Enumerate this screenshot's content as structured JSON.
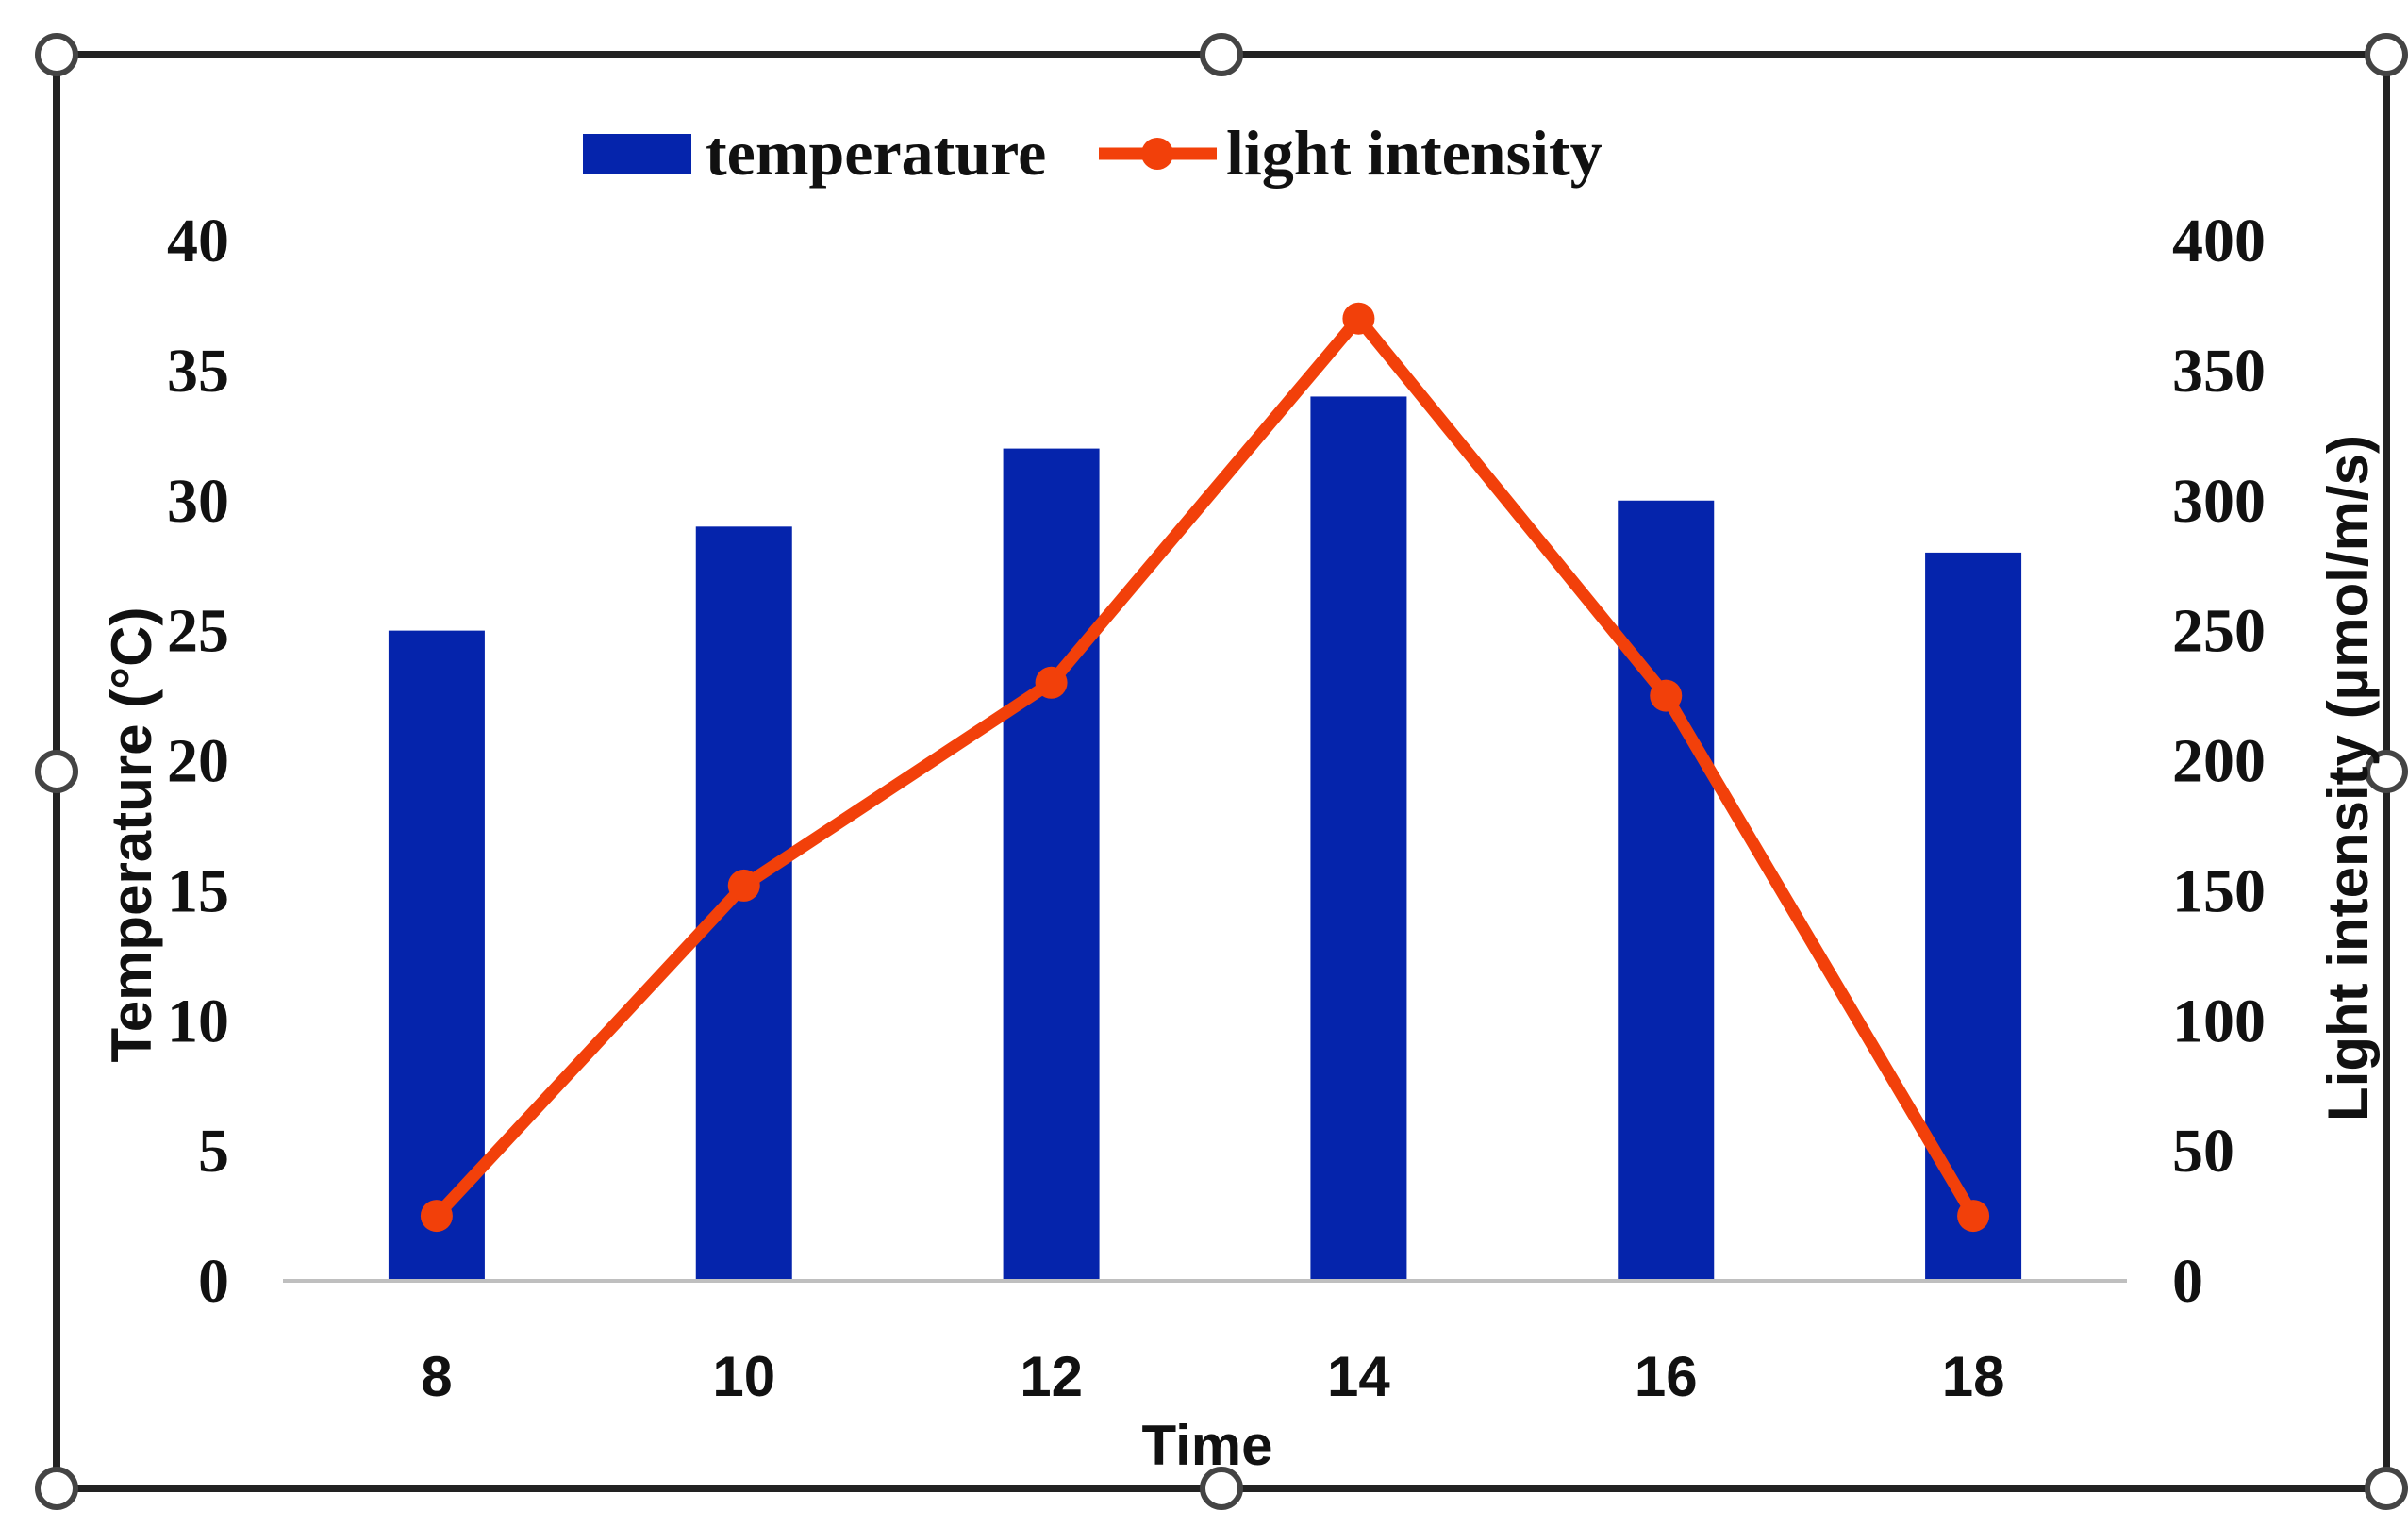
{
  "chart_data": {
    "type": "bar",
    "categories": [
      "8",
      "10",
      "12",
      "14",
      "16",
      "18"
    ],
    "series": [
      {
        "name": "temperature",
        "type": "bar",
        "axis": "left",
        "color": "#0524AC",
        "values": [
          25,
          29,
          32,
          34,
          30,
          28
        ]
      },
      {
        "name": "light intensity",
        "type": "line",
        "axis": "right",
        "color": "#F2400A",
        "values": [
          25,
          152,
          230,
          370,
          225,
          25
        ]
      }
    ],
    "xlabel": "Time",
    "ylabel": "Temperature (°C)",
    "y2label": "Light intensity (µmol/m/s)",
    "ylim": [
      0,
      40
    ],
    "y2lim": [
      0,
      400
    ],
    "yticks": [
      "0",
      "5",
      "10",
      "15",
      "20",
      "25",
      "30",
      "35",
      "40"
    ],
    "y2ticks": [
      "0",
      "50",
      "100",
      "150",
      "200",
      "250",
      "300",
      "350",
      "400"
    ],
    "legend_position": "top-center",
    "grid": false
  }
}
